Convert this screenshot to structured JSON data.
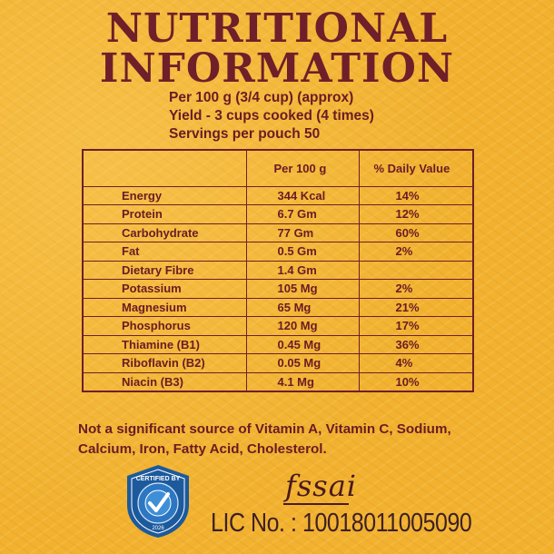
{
  "title": {
    "line1": "NUTRITIONAL",
    "line2": "INFORMATION"
  },
  "info": {
    "line1": "Per 100 g (3/4 cup) (approx)",
    "line2": "Yield - 3 cups cooked (4 times)",
    "line3": "Servings per pouch 50"
  },
  "table": {
    "headers": [
      "",
      "Per 100 g",
      "% Daily Value"
    ],
    "rows": [
      [
        "Energy",
        "344 Kcal",
        "14%"
      ],
      [
        "Protein",
        "6.7 Gm",
        "12%"
      ],
      [
        "Carbohydrate",
        "77 Gm",
        "60%"
      ],
      [
        "Fat",
        "0.5 Gm",
        "2%"
      ],
      [
        "Dietary Fibre",
        "1.4 Gm",
        ""
      ],
      [
        "Potassium",
        "105 Mg",
        "2%"
      ],
      [
        "Magnesium",
        "65 Mg",
        "21%"
      ],
      [
        "Phosphorus",
        "120 Mg",
        "17%"
      ],
      [
        "Thiamine (B1)",
        "0.45 Mg",
        "36%"
      ],
      [
        "Riboflavin (B2)",
        "0.05 Mg",
        "4%"
      ],
      [
        "Niacin (B3)",
        "4.1 Mg",
        "10%"
      ]
    ]
  },
  "note": {
    "line1": "Not a significant source of Vitamin A, Vitamin C, Sodium,",
    "line2": "Calcium, Iron, Fatty Acid, Cholesterol."
  },
  "seal": {
    "icon": "certification-seal-icon",
    "text_top": "CERTIFIED BY",
    "text_bottom": "2026"
  },
  "fssai": {
    "logo": "fssai",
    "lic": "LIC No. : 10018011005090"
  },
  "colors": {
    "background": "#f2b230",
    "text": "#6a1b24",
    "seal": "#1c5a9c"
  }
}
